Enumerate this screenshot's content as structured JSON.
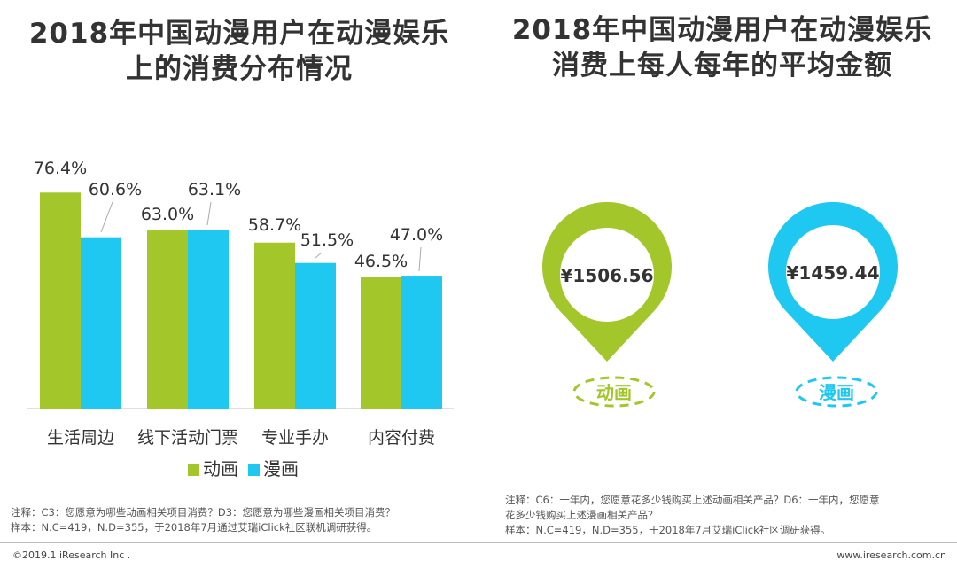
{
  "left_title": {
    "line1": "2018年中国动漫用户在动漫娱乐",
    "line2": "上的消费分布情况"
  },
  "right_title": {
    "line1": "2018年中国动漫用户在动漫娱乐",
    "line2": "消费上每人每年的平均金额"
  },
  "colors": {
    "anime": "#a3c72a",
    "manga": "#1ec8f0"
  },
  "chart_data": [
    {
      "type": "bar",
      "title": "2018年中国动漫用户在动漫娱乐上的消费分布情况",
      "categories": [
        "生活周边",
        "线下活动门票",
        "专业手办",
        "内容付费"
      ],
      "series": [
        {
          "name": "动画",
          "values": [
            76.4,
            63.0,
            58.7,
            46.5
          ],
          "labels": [
            "76.4%",
            "63.0%",
            "58.7%",
            "46.5%"
          ]
        },
        {
          "name": "漫画",
          "values": [
            60.6,
            63.1,
            51.5,
            47.0
          ],
          "labels": [
            "60.6%",
            "63.1%",
            "51.5%",
            "47.0%"
          ]
        }
      ],
      "ylim": [
        0,
        100
      ],
      "legend": "bottom"
    },
    {
      "type": "table",
      "title": "2018年中国动漫用户在动漫娱乐消费上每人每年的平均金额",
      "items": [
        {
          "name": "动画",
          "value": 1506.56,
          "label": "¥1506.56"
        },
        {
          "name": "漫画",
          "value": 1459.44,
          "label": "¥1459.44"
        }
      ]
    }
  ],
  "left_notes": {
    "line1": "注释：C3：您愿意为哪些动画相关项目消费？D3：您愿意为哪些漫画相关项目消费？",
    "line2": "样本：N.C=419，N.D=355，于2018年7月通过艾瑞iClick社区联机调研获得。"
  },
  "right_notes": {
    "line1": "注释：C6：一年内，您愿意花多少钱购买上述动画相关产品？D6：一年内，您愿意",
    "line2": "花多少钱购买上述漫画相关产品？",
    "line3": "样本：N.C=419，N.D=355，于2018年7月艾瑞iClick社区调研获得。"
  },
  "footer": {
    "left": "©2019.1 iResearch Inc .",
    "right": "www.iresearch.com.cn"
  }
}
